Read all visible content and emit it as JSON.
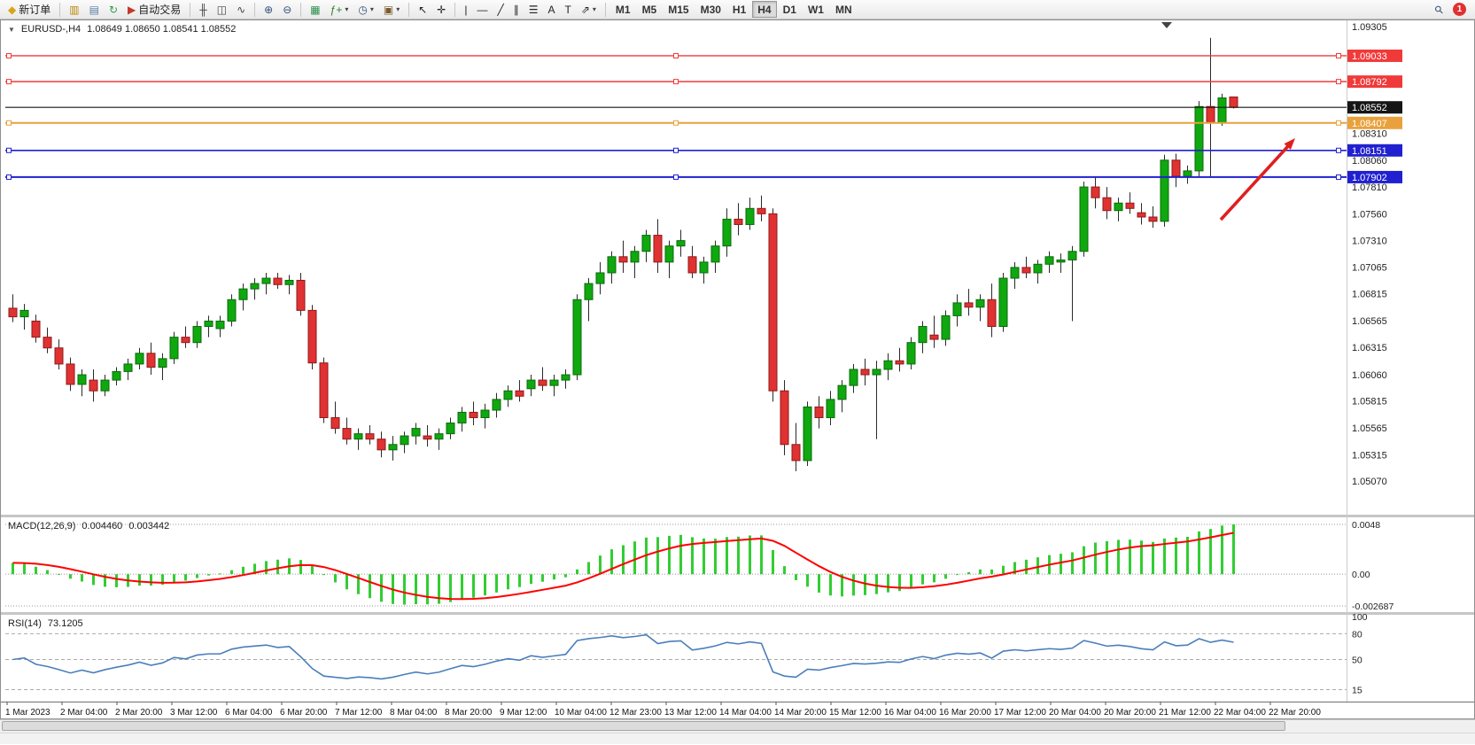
{
  "toolbar": {
    "left_items": [
      {
        "type": "button",
        "name": "new-order-button",
        "icon": "new-order-icon",
        "glyph": "◆",
        "glyph_color": "#dba416",
        "label": "新订单"
      },
      {
        "type": "separator"
      },
      {
        "type": "button",
        "name": "chart-window-button",
        "icon": "gold-bars-icon",
        "glyph": "▥",
        "glyph_color": "#b8860b"
      },
      {
        "type": "button",
        "name": "market-watch-button",
        "icon": "market-watch-icon",
        "glyph": "▤",
        "glyph_color": "#5b7fa6"
      },
      {
        "type": "button",
        "name": "refresh-button",
        "icon": "refresh-icon",
        "glyph": "↻",
        "glyph_color": "#2f9e44"
      },
      {
        "type": "button",
        "name": "autotrading-button",
        "icon": "autotrading-icon",
        "glyph": "▶",
        "glyph_color": "#c0392b",
        "label": "自动交易"
      },
      {
        "type": "separator"
      },
      {
        "type": "button",
        "name": "bar-chart-button",
        "icon": "bar-chart-icon",
        "glyph": "╫",
        "glyph_color": "#444444"
      },
      {
        "type": "button",
        "name": "candlestick-chart-button",
        "icon": "candlestick-chart-icon",
        "glyph": "◫",
        "glyph_color": "#444444"
      },
      {
        "type": "button",
        "name": "line-chart-button",
        "icon": "line-chart-icon",
        "glyph": "∿",
        "glyph_color": "#444444"
      },
      {
        "type": "separator"
      },
      {
        "type": "button",
        "name": "zoom-in-button",
        "icon": "zoom-in-icon",
        "glyph": "⊕",
        "glyph_color": "#33507a"
      },
      {
        "type": "button",
        "name": "zoom-out-button",
        "icon": "zoom-out-icon",
        "glyph": "⊖",
        "glyph_color": "#33507a"
      },
      {
        "type": "separator"
      },
      {
        "type": "button",
        "name": "tile-windows-button",
        "icon": "tile-windows-icon",
        "glyph": "▦",
        "glyph_color": "#2f8f4e"
      },
      {
        "type": "button",
        "name": "indicators-button",
        "icon": "indicators-icon",
        "glyph": "ƒ+",
        "glyph_color": "#2e7d32",
        "caret": true
      },
      {
        "type": "button",
        "name": "periods-button",
        "icon": "clock-icon",
        "glyph": "◷",
        "glyph_color": "#33507a",
        "caret": true
      },
      {
        "type": "button",
        "name": "templates-button",
        "icon": "template-icon",
        "glyph": "▣",
        "glyph_color": "#7a5c2e",
        "caret": true
      },
      {
        "type": "separator"
      },
      {
        "type": "button",
        "name": "cursor-button",
        "icon": "cursor-icon",
        "glyph": "↖",
        "glyph_color": "#222222"
      },
      {
        "type": "button",
        "name": "crosshair-button",
        "icon": "crosshair-icon",
        "glyph": "✛",
        "glyph_color": "#222222"
      },
      {
        "type": "separator"
      },
      {
        "type": "button",
        "name": "vertical-line-button",
        "icon": "vertical-line-icon",
        "glyph": "|",
        "glyph_color": "#222222"
      },
      {
        "type": "button",
        "name": "horizontal-line-button",
        "icon": "horizontal-line-icon",
        "glyph": "—",
        "glyph_color": "#222222"
      },
      {
        "type": "button",
        "name": "trendline-button",
        "icon": "trendline-icon",
        "glyph": "╱",
        "glyph_color": "#222222"
      },
      {
        "type": "button",
        "name": "channel-button",
        "icon": "channel-icon",
        "glyph": "∥",
        "glyph_color": "#222222"
      },
      {
        "type": "button",
        "name": "fibonacci-button",
        "icon": "fibonacci-icon",
        "glyph": "☰",
        "glyph_color": "#222222"
      },
      {
        "type": "button",
        "name": "text-button",
        "icon": "text-icon",
        "glyph": "A",
        "glyph_color": "#222222"
      },
      {
        "type": "button",
        "name": "text-label-button",
        "icon": "text-label-icon",
        "glyph": "T",
        "glyph_color": "#222222"
      },
      {
        "type": "button",
        "name": "arrows-button",
        "icon": "arrow-tool-icon",
        "glyph": "⇗",
        "glyph_color": "#222222",
        "caret": true
      },
      {
        "type": "separator"
      },
      {
        "type": "tf",
        "name": "timeframe-m1-button",
        "label": "M1"
      },
      {
        "type": "tf",
        "name": "timeframe-m5-button",
        "label": "M5"
      },
      {
        "type": "tf",
        "name": "timeframe-m15-button",
        "label": "M15"
      },
      {
        "type": "tf",
        "name": "timeframe-m30-button",
        "label": "M30"
      },
      {
        "type": "tf",
        "name": "timeframe-h1-button",
        "label": "H1"
      },
      {
        "type": "tf",
        "name": "timeframe-h4-button",
        "label": "H4",
        "active": true
      },
      {
        "type": "tf",
        "name": "timeframe-d1-button",
        "label": "D1"
      },
      {
        "type": "tf",
        "name": "timeframe-w1-button",
        "label": "W1"
      },
      {
        "type": "tf",
        "name": "timeframe-mn-button",
        "label": "MN"
      }
    ],
    "right_items": [
      {
        "type": "button",
        "name": "search-button",
        "icon": "search-icon",
        "glyph": "⚲",
        "glyph_color": "#33507a",
        "rotate": true
      },
      {
        "type": "badge",
        "name": "notification-badge",
        "label": "1",
        "color": "#e03131"
      }
    ]
  },
  "chart": {
    "header": {
      "collapse_glyph": "▼",
      "symbol": "EURUSD-,H4",
      "quote": "1.08649 1.08650 1.08541 1.08552"
    }
  },
  "macd": {
    "title": "MACD(12,26,9)",
    "value_main": "0.004460",
    "value_signal": "0.003442",
    "axis": [
      "0.0048",
      "0.00",
      "-0.002687"
    ]
  },
  "rsi": {
    "title": "RSI(14)",
    "value": "73.1205",
    "axis": [
      "100",
      "80",
      "50",
      "15"
    ],
    "levels": [
      80,
      50,
      15
    ]
  },
  "chart_data": {
    "type": "candlestick",
    "symbol": "EURUSD",
    "period": "H4",
    "quote": {
      "open": 1.08649,
      "high": 1.0865,
      "low": 1.08541,
      "close": 1.08552
    },
    "price_range": [
      1.0507,
      1.09305
    ],
    "up_color": "#0fa80f",
    "down_color": "#e03232",
    "candles": [
      [
        1.0668,
        1.0681,
        1.0655,
        1.066
      ],
      [
        1.066,
        1.0672,
        1.0648,
        1.0666
      ],
      [
        1.0656,
        1.0662,
        1.0636,
        1.0641
      ],
      [
        1.0641,
        1.065,
        1.0626,
        1.0631
      ],
      [
        1.0631,
        1.0639,
        1.0611,
        1.0616
      ],
      [
        1.0616,
        1.0622,
        1.0591,
        1.0597
      ],
      [
        1.0597,
        1.0611,
        1.0586,
        1.0606
      ],
      [
        1.0601,
        1.0611,
        1.0581,
        1.0591
      ],
      [
        1.0591,
        1.0606,
        1.0586,
        1.0601
      ],
      [
        1.0601,
        1.0613,
        1.0596,
        1.0609
      ],
      [
        1.0609,
        1.0621,
        1.0601,
        1.0616
      ],
      [
        1.0616,
        1.0631,
        1.0611,
        1.0626
      ],
      [
        1.0626,
        1.0636,
        1.0606,
        1.0613
      ],
      [
        1.0613,
        1.0626,
        1.0601,
        1.0621
      ],
      [
        1.0621,
        1.0646,
        1.0616,
        1.0641
      ],
      [
        1.0641,
        1.0651,
        1.0631,
        1.0636
      ],
      [
        1.0636,
        1.0656,
        1.0631,
        1.0651
      ],
      [
        1.0651,
        1.0661,
        1.0641,
        1.0656
      ],
      [
        1.0649,
        1.0661,
        1.0641,
        1.0656
      ],
      [
        1.0656,
        1.0681,
        1.0651,
        1.0676
      ],
      [
        1.0676,
        1.0691,
        1.0666,
        1.0686
      ],
      [
        1.0686,
        1.0696,
        1.0676,
        1.0691
      ],
      [
        1.0691,
        1.0701,
        1.0681,
        1.0696
      ],
      [
        1.0696,
        1.0701,
        1.0686,
        1.069
      ],
      [
        1.069,
        1.0699,
        1.0681,
        1.0694
      ],
      [
        1.0694,
        1.0701,
        1.0661,
        1.0666
      ],
      [
        1.0666,
        1.0671,
        1.0611,
        1.0617
      ],
      [
        1.0617,
        1.0622,
        1.0561,
        1.0566
      ],
      [
        1.0566,
        1.0581,
        1.0551,
        1.0556
      ],
      [
        1.0556,
        1.0566,
        1.0541,
        1.0546
      ],
      [
        1.0546,
        1.0556,
        1.0536,
        1.0551
      ],
      [
        1.0551,
        1.0559,
        1.0541,
        1.0546
      ],
      [
        1.0546,
        1.0553,
        1.0529,
        1.0536
      ],
      [
        1.0536,
        1.0549,
        1.0526,
        1.0541
      ],
      [
        1.0541,
        1.0553,
        1.0533,
        1.0549
      ],
      [
        1.0549,
        1.0561,
        1.0541,
        1.0556
      ],
      [
        1.0549,
        1.0559,
        1.0539,
        1.0546
      ],
      [
        1.0546,
        1.0556,
        1.0536,
        1.0551
      ],
      [
        1.0551,
        1.0566,
        1.0546,
        1.0561
      ],
      [
        1.0561,
        1.0576,
        1.0553,
        1.0571
      ],
      [
        1.0571,
        1.0581,
        1.0559,
        1.0566
      ],
      [
        1.0566,
        1.0579,
        1.0556,
        1.0573
      ],
      [
        1.0573,
        1.0589,
        1.0566,
        1.0583
      ],
      [
        1.0583,
        1.0596,
        1.0576,
        1.0591
      ],
      [
        1.0591,
        1.0601,
        1.0581,
        1.0586
      ],
      [
        1.0593,
        1.0606,
        1.0586,
        1.0601
      ],
      [
        1.0601,
        1.0613,
        1.0591,
        1.0596
      ],
      [
        1.0596,
        1.0606,
        1.0586,
        1.0601
      ],
      [
        1.0601,
        1.0611,
        1.0593,
        1.0606
      ],
      [
        1.0606,
        1.0681,
        1.0601,
        1.0676
      ],
      [
        1.0676,
        1.0696,
        1.0656,
        1.0691
      ],
      [
        1.0691,
        1.0711,
        1.0681,
        1.0701
      ],
      [
        1.0701,
        1.0721,
        1.0691,
        1.0716
      ],
      [
        1.0716,
        1.0731,
        1.0701,
        1.0711
      ],
      [
        1.0711,
        1.0726,
        1.0696,
        1.0721
      ],
      [
        1.0721,
        1.0741,
        1.0711,
        1.0736
      ],
      [
        1.0736,
        1.0751,
        1.0701,
        1.0711
      ],
      [
        1.0711,
        1.0731,
        1.0696,
        1.0726
      ],
      [
        1.0726,
        1.0741,
        1.0716,
        1.0731
      ],
      [
        1.0716,
        1.0726,
        1.0696,
        1.0701
      ],
      [
        1.0701,
        1.0716,
        1.0691,
        1.0711
      ],
      [
        1.0711,
        1.0731,
        1.0701,
        1.0726
      ],
      [
        1.0726,
        1.0761,
        1.0716,
        1.0751
      ],
      [
        1.0751,
        1.0766,
        1.0736,
        1.0746
      ],
      [
        1.0746,
        1.0771,
        1.0741,
        1.0761
      ],
      [
        1.0761,
        1.0773,
        1.0749,
        1.0756
      ],
      [
        1.0756,
        1.0761,
        1.0581,
        1.0591
      ],
      [
        1.0591,
        1.0601,
        1.0531,
        1.0541
      ],
      [
        1.0541,
        1.0561,
        1.0516,
        1.0526
      ],
      [
        1.0526,
        1.0581,
        1.0521,
        1.0576
      ],
      [
        1.0576,
        1.0586,
        1.0556,
        1.0566
      ],
      [
        1.0566,
        1.0591,
        1.0559,
        1.0583
      ],
      [
        1.0583,
        1.0601,
        1.0571,
        1.0596
      ],
      [
        1.0596,
        1.0616,
        1.0589,
        1.0611
      ],
      [
        1.0611,
        1.0621,
        1.0596,
        1.0606
      ],
      [
        1.0606,
        1.0619,
        1.0546,
        1.0611
      ],
      [
        1.0611,
        1.0626,
        1.0601,
        1.0619
      ],
      [
        1.0619,
        1.0631,
        1.0609,
        1.0616
      ],
      [
        1.0616,
        1.0641,
        1.0611,
        1.0636
      ],
      [
        1.0636,
        1.0656,
        1.0626,
        1.0651
      ],
      [
        1.0643,
        1.0661,
        1.0631,
        1.0639
      ],
      [
        1.0639,
        1.0666,
        1.0633,
        1.0661
      ],
      [
        1.0661,
        1.0681,
        1.0651,
        1.0673
      ],
      [
        1.0673,
        1.0686,
        1.0661,
        1.0669
      ],
      [
        1.0669,
        1.0681,
        1.0656,
        1.0676
      ],
      [
        1.0676,
        1.0691,
        1.0641,
        1.0651
      ],
      [
        1.0651,
        1.0701,
        1.0646,
        1.0696
      ],
      [
        1.0696,
        1.0711,
        1.0686,
        1.0706
      ],
      [
        1.0706,
        1.0716,
        1.0696,
        1.0701
      ],
      [
        1.0701,
        1.0713,
        1.0691,
        1.0709
      ],
      [
        1.0709,
        1.0721,
        1.0701,
        1.0716
      ],
      [
        1.0711,
        1.0719,
        1.0701,
        1.0713
      ],
      [
        1.0713,
        1.0726,
        1.0656,
        1.0721
      ],
      [
        1.0721,
        1.0786,
        1.0716,
        1.0781
      ],
      [
        1.0781,
        1.0791,
        1.0761,
        1.0771
      ],
      [
        1.0771,
        1.0781,
        1.0751,
        1.0759
      ],
      [
        1.0759,
        1.0771,
        1.0749,
        1.0766
      ],
      [
        1.0766,
        1.0776,
        1.0756,
        1.0761
      ],
      [
        1.0757,
        1.0766,
        1.0746,
        1.0753
      ],
      [
        1.0753,
        1.0763,
        1.0743,
        1.0749
      ],
      [
        1.0749,
        1.0811,
        1.0744,
        1.0806
      ],
      [
        1.0806,
        1.0812,
        1.0781,
        1.0791
      ],
      [
        1.0791,
        1.0801,
        1.0784,
        1.0796
      ],
      [
        1.0796,
        1.0861,
        1.0791,
        1.0856
      ],
      [
        1.0856,
        1.092,
        1.0791,
        1.0841
      ],
      [
        1.0841,
        1.0868,
        1.0838,
        1.0864
      ],
      [
        1.08649,
        1.0865,
        1.08541,
        1.08552
      ]
    ],
    "y_axis_ticks": [
      "1.09305",
      "1.08310",
      "1.08060",
      "1.07810",
      "1.07560",
      "1.07310",
      "1.07065",
      "1.06815",
      "1.06565",
      "1.06315",
      "1.06060",
      "1.05815",
      "1.05565",
      "1.05315",
      "1.05070"
    ],
    "horizontal_lines": [
      {
        "price": 1.09033,
        "label": "1.09033",
        "color": "#f03a3a",
        "width": 1.4,
        "handles": true
      },
      {
        "price": 1.08792,
        "label": "1.08792",
        "color": "#f03a3a",
        "width": 1.4,
        "handles": true
      },
      {
        "price": 1.08407,
        "label": "1.08407",
        "color": "#e8a13c",
        "width": 2,
        "handles": true
      },
      {
        "price": 1.08151,
        "label": "1.08151",
        "color": "#2020d0",
        "width": 1.6,
        "handles": true
      },
      {
        "price": 1.07902,
        "label": "1.07902",
        "color": "#2020d0",
        "width": 2,
        "handles": true
      },
      {
        "price": 1.08552,
        "label": "1.08552",
        "color": "#151515",
        "width": 1.2,
        "handles": false
      }
    ],
    "x_labels": [
      "1 Mar 2023",
      "2 Mar 04:00",
      "2 Mar 20:00",
      "3 Mar 12:00",
      "6 Mar 04:00",
      "6 Mar 20:00",
      "7 Mar 12:00",
      "8 Mar 04:00",
      "8 Mar 20:00",
      "9 Mar 12:00",
      "10 Mar 04:00",
      "12 Mar 23:00",
      "13 Mar 12:00",
      "14 Mar 04:00",
      "14 Mar 20:00",
      "15 Mar 12:00",
      "16 Mar 04:00",
      "16 Mar 20:00",
      "17 Mar 12:00",
      "20 Mar 04:00",
      "20 Mar 20:00",
      "21 Mar 12:00",
      "22 Mar 04:00",
      "22 Mar 20:00"
    ],
    "indicators": [
      {
        "name": "MACD",
        "params": "12,26,9",
        "main_value": 0.00446,
        "signal_value": 0.003442,
        "histogram_color": "#32CD32",
        "signal_color": "#ff0000",
        "axis": [
          "0.0048",
          "0.00",
          "-0.002687"
        ]
      },
      {
        "name": "RSI",
        "params": "14",
        "value": 73.1205,
        "line_color": "#4a7ebb",
        "levels": [
          80,
          50,
          15
        ],
        "axis": [
          "100",
          "80",
          "50",
          "15"
        ]
      }
    ],
    "annotations": [
      {
        "type": "arrow",
        "color": "#e01f1f",
        "direction": "up-right",
        "note": "bullish trend arrow near latest rally"
      }
    ]
  }
}
